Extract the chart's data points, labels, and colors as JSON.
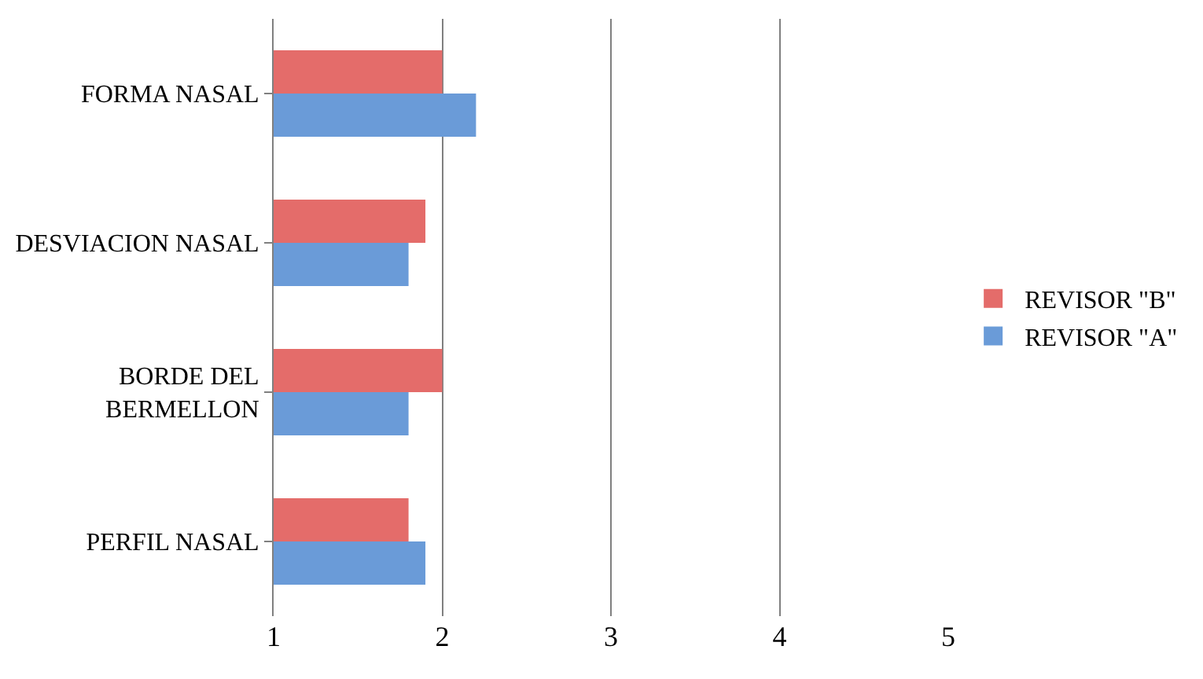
{
  "chart_data": {
    "type": "bar",
    "orientation": "horizontal",
    "categories": [
      "FORMA NASAL",
      "DESVIACION NASAL",
      "BORDE DEL BERMELLON",
      "PERFIL NASAL"
    ],
    "series": [
      {
        "name": "REVISOR \"B\"",
        "color": "#e46c6a",
        "values": [
          2.0,
          1.9,
          2.0,
          1.8
        ]
      },
      {
        "name": "REVISOR \"A\"",
        "color": "#6a9bd8",
        "values": [
          2.2,
          1.8,
          1.8,
          1.9
        ]
      }
    ],
    "xlim": [
      1,
      5
    ],
    "xticks": [
      1,
      2,
      3,
      4,
      5
    ],
    "grid": "x",
    "legend": "right"
  }
}
